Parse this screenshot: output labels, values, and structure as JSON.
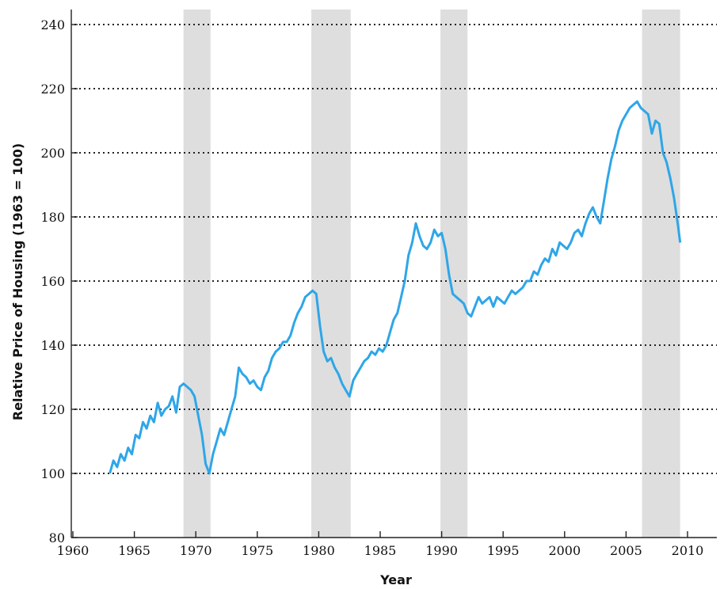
{
  "chart_data": {
    "type": "line",
    "title": "",
    "xlabel": "Year",
    "ylabel": "Relative Price of Housing (1963 = 100)",
    "xlim": [
      1960,
      2012
    ],
    "ylim": [
      80,
      240
    ],
    "x_ticks": [
      "1960",
      "1965",
      "1970",
      "1975",
      "1980",
      "1985",
      "1990",
      "1995",
      "2000",
      "2005",
      "2010"
    ],
    "y_ticks": [
      "80",
      "100",
      "120",
      "140",
      "160",
      "180",
      "200",
      "220",
      "240"
    ],
    "grid": "horizontal dotted",
    "shaded_periods": [
      [
        1969.0,
        1971.2
      ],
      [
        1979.4,
        1982.6
      ],
      [
        1989.9,
        1992.1
      ],
      [
        2006.3,
        2009.4
      ]
    ],
    "series": [
      {
        "color": "#2ea6e8",
        "x": [
          1963.0,
          1963.3,
          1963.6,
          1963.9,
          1964.2,
          1964.5,
          1964.8,
          1965.1,
          1965.4,
          1965.7,
          1966.0,
          1966.3,
          1966.6,
          1966.9,
          1967.2,
          1967.5,
          1967.8,
          1968.1,
          1968.4,
          1968.7,
          1969.0,
          1969.3,
          1969.6,
          1969.9,
          1970.2,
          1970.5,
          1970.8,
          1971.1,
          1971.4,
          1971.7,
          1972.0,
          1972.3,
          1972.6,
          1972.9,
          1973.2,
          1973.5,
          1973.8,
          1974.1,
          1974.4,
          1974.7,
          1975.0,
          1975.3,
          1975.6,
          1975.9,
          1976.2,
          1976.5,
          1976.8,
          1977.1,
          1977.4,
          1977.7,
          1978.0,
          1978.3,
          1978.6,
          1978.9,
          1979.2,
          1979.5,
          1979.8,
          1980.1,
          1980.4,
          1980.7,
          1981.0,
          1981.3,
          1981.6,
          1981.9,
          1982.2,
          1982.5,
          1982.8,
          1983.1,
          1983.4,
          1983.7,
          1984.0,
          1984.3,
          1984.6,
          1984.9,
          1985.2,
          1985.5,
          1985.8,
          1986.1,
          1986.4,
          1986.7,
          1987.0,
          1987.3,
          1987.6,
          1987.9,
          1988.2,
          1988.5,
          1988.8,
          1989.1,
          1989.4,
          1989.7,
          1990.0,
          1990.3,
          1990.6,
          1990.9,
          1991.2,
          1991.5,
          1991.8,
          1992.1,
          1992.4,
          1992.7,
          1993.0,
          1993.3,
          1993.6,
          1993.9,
          1994.2,
          1994.5,
          1994.8,
          1995.1,
          1995.4,
          1995.7,
          1996.0,
          1996.3,
          1996.6,
          1996.9,
          1997.2,
          1997.5,
          1997.8,
          1998.1,
          1998.4,
          1998.7,
          1999.0,
          1999.3,
          1999.6,
          1999.9,
          2000.2,
          2000.5,
          2000.8,
          2001.1,
          2001.4,
          2001.7,
          2002.0,
          2002.3,
          2002.6,
          2002.9,
          2003.2,
          2003.5,
          2003.8,
          2004.1,
          2004.4,
          2004.7,
          2005.0,
          2005.3,
          2005.6,
          2005.9,
          2006.2,
          2006.5,
          2006.8,
          2007.1,
          2007.4,
          2007.7,
          2008.0,
          2008.3,
          2008.6,
          2008.9,
          2009.2,
          2009.4
        ],
        "values": [
          100,
          104,
          102,
          106,
          104,
          108,
          106,
          112,
          111,
          116,
          114,
          118,
          116,
          122,
          118,
          120,
          121,
          124,
          119,
          127,
          128,
          127,
          126,
          124,
          118,
          112,
          103,
          100,
          106,
          110,
          114,
          112,
          116,
          120,
          124,
          133,
          131,
          130,
          128,
          129,
          127,
          126,
          130,
          132,
          136,
          138,
          139,
          141,
          141,
          143,
          147,
          150,
          152,
          155,
          156,
          157,
          156,
          146,
          138,
          135,
          136,
          133,
          131,
          128,
          126,
          124,
          129,
          131,
          133,
          135,
          136,
          138,
          137,
          139,
          138,
          140,
          144,
          148,
          150,
          155,
          160,
          168,
          172,
          178,
          174,
          171,
          170,
          172,
          176,
          174,
          175,
          170,
          162,
          156,
          155,
          154,
          153,
          150,
          149,
          152,
          155,
          153,
          154,
          155,
          152,
          155,
          154,
          153,
          155,
          157,
          156,
          157,
          158,
          160,
          160,
          163,
          162,
          165,
          167,
          166,
          170,
          168,
          172,
          171,
          170,
          172,
          175,
          176,
          174,
          178,
          181,
          183,
          180,
          178,
          185,
          192,
          198,
          202,
          207,
          210,
          212,
          214,
          215,
          216,
          214,
          213,
          212,
          206,
          210,
          209,
          200,
          197,
          192,
          186,
          178,
          172
        ]
      }
    ]
  }
}
